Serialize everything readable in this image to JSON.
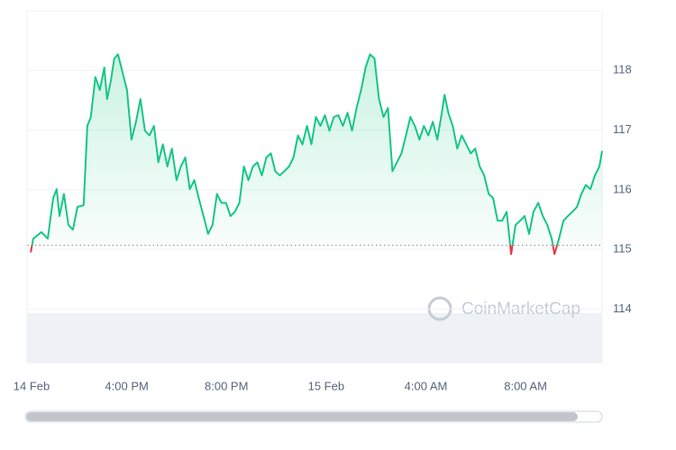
{
  "chart_data": {
    "type": "line",
    "watermark": "CoinMarketCap",
    "color": "#16c784",
    "below_color": "#ea3943",
    "reference": 115.07,
    "grid": true,
    "xlim": [
      0,
      23.07
    ],
    "ylim": [
      113.1,
      119.0
    ],
    "yticks": [
      114,
      115,
      116,
      117,
      118
    ],
    "xticks": [
      {
        "value": 0,
        "label": "14 Feb"
      },
      {
        "value": 4,
        "label": "4:00 PM"
      },
      {
        "value": 8,
        "label": "8:00 PM"
      },
      {
        "value": 12,
        "label": "15 Feb"
      },
      {
        "value": 16,
        "label": "4:00 AM"
      },
      {
        "value": 20,
        "label": "8:00 AM"
      }
    ],
    "x": [
      0.15,
      0.25,
      0.58,
      0.83,
      1.05,
      1.19,
      1.3,
      1.48,
      1.66,
      1.84,
      2.02,
      2.27,
      2.42,
      2.56,
      2.74,
      2.92,
      3.1,
      3.21,
      3.36,
      3.5,
      3.65,
      3.83,
      4.01,
      4.19,
      4.37,
      4.55,
      4.73,
      4.91,
      5.09,
      5.27,
      5.45,
      5.63,
      5.81,
      6.0,
      6.17,
      6.35,
      6.53,
      6.71,
      6.89,
      7.08,
      7.26,
      7.44,
      7.62,
      7.8,
      7.98,
      8.16,
      8.34,
      8.52,
      8.7,
      8.88,
      9.06,
      9.24,
      9.42,
      9.6,
      9.78,
      9.96,
      10.14,
      10.32,
      10.51,
      10.69,
      10.87,
      11.05,
      11.23,
      11.41,
      11.59,
      11.77,
      11.95,
      12.13,
      12.31,
      12.49,
      12.67,
      12.86,
      13.04,
      13.22,
      13.4,
      13.58,
      13.76,
      13.94,
      14.12,
      14.3,
      14.48,
      14.66,
      14.84,
      15.02,
      15.2,
      15.38,
      15.56,
      15.74,
      15.92,
      16.1,
      16.28,
      16.46,
      16.64,
      16.75,
      16.9,
      17.08,
      17.26,
      17.44,
      17.62,
      17.8,
      17.98,
      18.16,
      18.34,
      18.52,
      18.7,
      18.88,
      19.06,
      19.24,
      19.42,
      19.6,
      19.78,
      19.96,
      20.14,
      20.32,
      20.51,
      20.69,
      20.87,
      21.05,
      21.16,
      21.34,
      21.52,
      21.7,
      21.88,
      22.06,
      22.24,
      22.42,
      22.6,
      22.78,
      22.96,
      23.07
    ],
    "values": [
      114.95,
      115.18,
      115.29,
      115.18,
      115.86,
      116.01,
      115.56,
      115.93,
      115.41,
      115.33,
      115.71,
      115.74,
      117.07,
      117.22,
      117.89,
      117.67,
      118.05,
      117.52,
      117.82,
      118.2,
      118.27,
      117.97,
      117.67,
      116.84,
      117.14,
      117.52,
      116.99,
      116.91,
      117.07,
      116.46,
      116.76,
      116.39,
      116.69,
      116.16,
      116.39,
      116.54,
      116.01,
      116.16,
      115.86,
      115.56,
      115.26,
      115.41,
      115.93,
      115.78,
      115.78,
      115.56,
      115.63,
      115.78,
      116.39,
      116.16,
      116.39,
      116.46,
      116.24,
      116.54,
      116.61,
      116.31,
      116.24,
      116.31,
      116.39,
      116.54,
      116.91,
      116.76,
      117.07,
      116.76,
      117.22,
      117.07,
      117.25,
      116.99,
      117.22,
      117.25,
      117.07,
      117.29,
      116.99,
      117.37,
      117.67,
      118.05,
      118.27,
      118.2,
      117.52,
      117.22,
      117.37,
      116.31,
      116.46,
      116.61,
      116.91,
      117.22,
      117.07,
      116.84,
      117.07,
      116.91,
      117.14,
      116.84,
      117.29,
      117.59,
      117.29,
      117.07,
      116.69,
      116.91,
      116.76,
      116.61,
      116.69,
      116.39,
      116.24,
      115.93,
      115.86,
      115.48,
      115.48,
      115.63,
      114.92,
      115.41,
      115.48,
      115.56,
      115.26,
      115.63,
      115.78,
      115.56,
      115.41,
      115.18,
      114.92,
      115.18,
      115.48,
      115.56,
      115.63,
      115.71,
      115.93,
      116.08,
      116.01,
      116.24,
      116.39,
      116.65
    ]
  }
}
